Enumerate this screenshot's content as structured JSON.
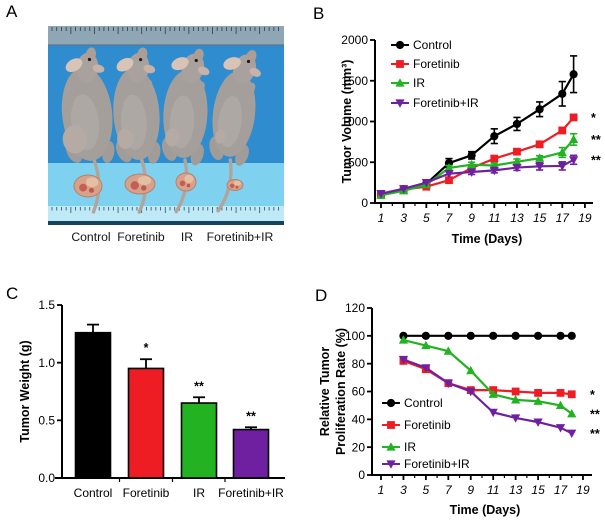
{
  "figure": {
    "panel_labels": {
      "a": "A",
      "b": "B",
      "c": "C",
      "d": "D"
    }
  },
  "panel_a": {
    "description": "Photograph of four tumor-bearing nude mice with rulers and excised tumors on blue background",
    "group_labels": [
      "Control",
      "Foretinib",
      "IR",
      "Foretinib+IR"
    ]
  },
  "colors": {
    "control": "#000000",
    "foretinib": "#ee1c23",
    "ir": "#22b222",
    "foretinib_ir": "#6e20a0"
  },
  "chart_data": [
    {
      "panel": "B",
      "type": "line",
      "xlabel": "Time (Days)",
      "ylabel": "Tumor Volume (mm³)",
      "xlim": [
        1,
        19
      ],
      "ylim": [
        0,
        2000
      ],
      "xticks": [
        1,
        3,
        5,
        7,
        9,
        11,
        13,
        15,
        17,
        19
      ],
      "yticks": [
        0,
        500,
        1000,
        1500,
        2000
      ],
      "legend_position": "inside-top-left",
      "x": [
        1,
        3,
        5,
        7,
        9,
        11,
        13,
        15,
        17,
        18
      ],
      "series": [
        {
          "name": "Control",
          "marker": "circle",
          "color": "#000000",
          "values": [
            100,
            170,
            235,
            490,
            585,
            820,
            970,
            1150,
            1340,
            1580
          ],
          "errors": [
            15,
            20,
            25,
            55,
            45,
            90,
            80,
            90,
            150,
            225
          ],
          "sig": ""
        },
        {
          "name": "Foretinib",
          "marker": "square",
          "color": "#ee1c23",
          "values": [
            110,
            165,
            200,
            280,
            430,
            545,
            630,
            720,
            890,
            1050
          ],
          "errors": [
            0,
            0,
            0,
            0,
            0,
            0,
            0,
            0,
            0,
            0
          ],
          "sig": "*"
        },
        {
          "name": "IR",
          "marker": "triangle-up",
          "color": "#22b222",
          "values": [
            95,
            150,
            225,
            430,
            470,
            460,
            505,
            550,
            620,
            780
          ],
          "errors": [
            0,
            0,
            0,
            30,
            30,
            30,
            35,
            30,
            60,
            70
          ],
          "sig": "**"
        },
        {
          "name": "Foretinib+IR",
          "marker": "triangle-down",
          "color": "#6e20a0",
          "values": [
            115,
            175,
            250,
            360,
            380,
            400,
            435,
            450,
            455,
            530
          ],
          "errors": [
            0,
            0,
            0,
            0,
            30,
            30,
            35,
            45,
            50,
            55
          ],
          "sig": "**"
        }
      ]
    },
    {
      "panel": "C",
      "type": "bar",
      "ylabel": "Tumor Weight (g)",
      "categories": [
        "Control",
        "Foretinib",
        "IR",
        "Foretinib+IR"
      ],
      "values": [
        1.26,
        0.95,
        0.65,
        0.42
      ],
      "errors": [
        0.07,
        0.08,
        0.05,
        0.02
      ],
      "colors": [
        "#000000",
        "#ee1c23",
        "#22b222",
        "#6e20a0"
      ],
      "sig": [
        "",
        "*",
        "**",
        "**"
      ],
      "ylim": [
        0,
        1.5
      ],
      "yticks": [
        "0.0",
        "0.5",
        "1.0",
        "1.5"
      ]
    },
    {
      "panel": "D",
      "type": "line",
      "xlabel": "Time (Days)",
      "ylabel_lines": [
        "Relative Tumor",
        "Proliferation Rate (%)"
      ],
      "xlim": [
        1,
        19
      ],
      "ylim": [
        0,
        120
      ],
      "xticks": [
        1,
        3,
        5,
        7,
        9,
        11,
        13,
        15,
        17,
        19
      ],
      "yticks": [
        0,
        20,
        40,
        60,
        80,
        100,
        120
      ],
      "legend_position": "inside-bottom-left",
      "x": [
        3,
        5,
        7,
        9,
        11,
        13,
        15,
        17,
        18
      ],
      "series": [
        {
          "name": "Control",
          "marker": "circle",
          "color": "#000000",
          "values": [
            100,
            100,
            100,
            100,
            100,
            100,
            100,
            100,
            100
          ],
          "sig": ""
        },
        {
          "name": "Foretinib",
          "marker": "square",
          "color": "#ee1c23",
          "values": [
            82,
            76,
            66,
            61,
            61,
            60,
            59,
            59,
            58
          ],
          "sig": "*"
        },
        {
          "name": "IR",
          "marker": "triangle-up",
          "color": "#22b222",
          "values": [
            97,
            93,
            89,
            75,
            58,
            54,
            53,
            50,
            44
          ],
          "sig": "**"
        },
        {
          "name": "Foretinib+IR",
          "marker": "triangle-down",
          "color": "#6e20a0",
          "values": [
            83,
            77,
            66,
            60,
            45,
            41,
            38,
            34,
            30
          ],
          "sig": "**"
        }
      ]
    }
  ]
}
